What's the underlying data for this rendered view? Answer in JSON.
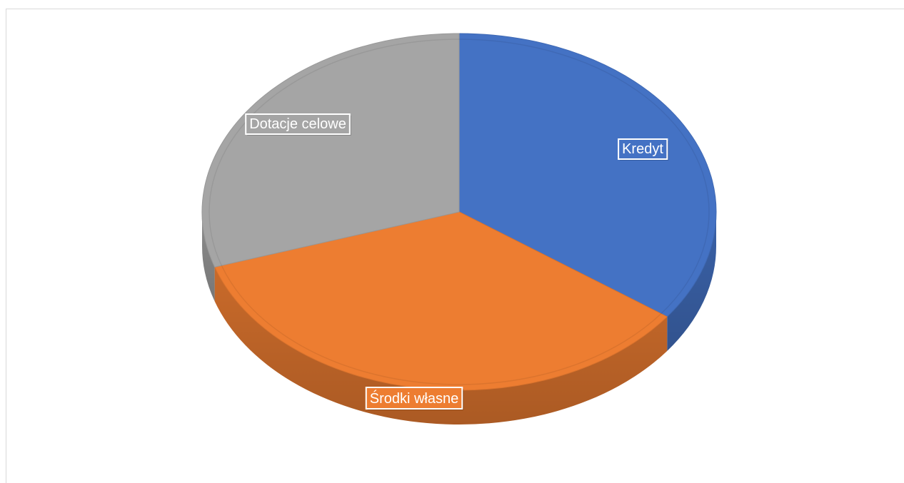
{
  "chart_data": {
    "type": "pie",
    "title": "",
    "categories": [
      "Kredyt",
      "Środki własne",
      "Dotacje celowe"
    ],
    "values": [
      35,
      35,
      30
    ],
    "colors": [
      "#4472c4",
      "#ed7d31",
      "#a5a5a5"
    ],
    "start_angle_deg": -90,
    "rotation": "clockwise",
    "legend": "none",
    "data_labels": "category-name",
    "style": "3d-tilted"
  }
}
